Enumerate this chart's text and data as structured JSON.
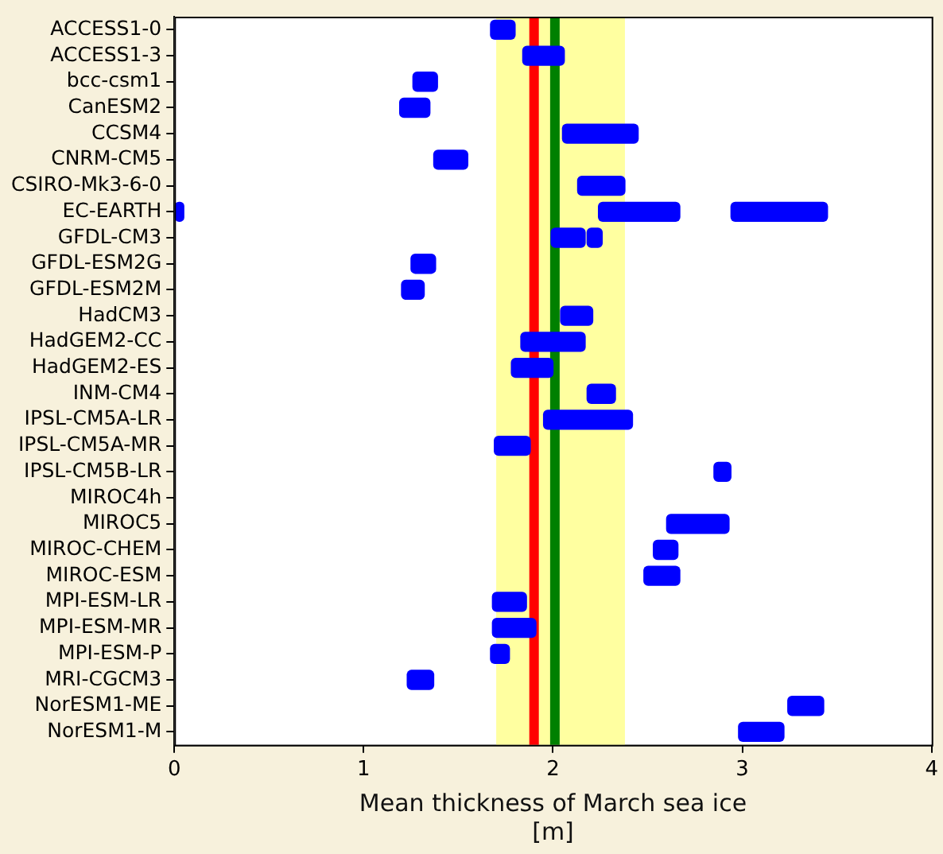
{
  "chart_data": {
    "type": "bar",
    "orientation": "horizontal",
    "xlabel": "Mean thickness of March sea ice\n[m]",
    "categories": [
      "ACCESS1-0",
      "ACCESS1-3",
      "bcc-csm1",
      "CanESM2",
      "CCSM4",
      "CNRM-CM5",
      "CSIRO-Mk3-6-0",
      "EC-EARTH",
      "GFDL-CM3",
      "GFDL-ESM2G",
      "GFDL-ESM2M",
      "HadCM3",
      "HadGEM2-CC",
      "HadGEM2-ES",
      "INM-CM4",
      "IPSL-CM5A-LR",
      "IPSL-CM5A-MR",
      "IPSL-CM5B-LR",
      "MIROC4h",
      "MIROC5",
      "MIROC-CHEM",
      "MIROC-ESM",
      "MPI-ESM-LR",
      "MPI-ESM-MR",
      "MPI-ESM-P",
      "MRI-CGCM3",
      "NorESM1-ME",
      "NorESM1-M"
    ],
    "series": [
      {
        "color": "#0000ff",
        "base": [
          1.67,
          1.84,
          1.26,
          1.19,
          2.05,
          1.37,
          2.13,
          2.24,
          1.99,
          1.25,
          1.2,
          2.04,
          1.83,
          1.78,
          2.18,
          1.95,
          1.69,
          2.85,
          null,
          2.6,
          2.53,
          2.48,
          1.68,
          1.68,
          1.67,
          1.23,
          3.24,
          2.98
        ],
        "values": [
          0.13,
          0.22,
          0.13,
          0.16,
          0.4,
          0.18,
          0.25,
          0.43,
          0.18,
          0.13,
          0.12,
          0.17,
          0.34,
          0.22,
          0.15,
          0.47,
          0.19,
          0.09,
          null,
          0.33,
          0.13,
          0.19,
          0.18,
          0.23,
          0.1,
          0.14,
          0.19,
          0.24
        ]
      },
      {
        "color": "#0000ff",
        "base": [
          null,
          null,
          null,
          null,
          null,
          null,
          null,
          2.94,
          2.18,
          null,
          null,
          null,
          null,
          null,
          null,
          null,
          null,
          null,
          null,
          null,
          null,
          null,
          null,
          null,
          null,
          null,
          null,
          null
        ],
        "values": [
          null,
          null,
          null,
          null,
          null,
          null,
          null,
          0.51,
          0.08,
          null,
          null,
          null,
          null,
          null,
          null,
          null,
          null,
          null,
          null,
          null,
          null,
          null,
          null,
          null,
          null,
          null,
          null,
          null
        ]
      },
      {
        "color": "#0000ff",
        "base": [
          null,
          null,
          null,
          null,
          null,
          null,
          null,
          0,
          null,
          null,
          null,
          null,
          null,
          null,
          null,
          null,
          null,
          null,
          null,
          null,
          null,
          null,
          null,
          null,
          null,
          null,
          null,
          null
        ],
        "values": [
          null,
          null,
          null,
          null,
          null,
          null,
          null,
          0.05,
          null,
          null,
          null,
          null,
          null,
          null,
          null,
          null,
          null,
          null,
          null,
          null,
          null,
          null,
          null,
          null,
          null,
          null,
          null,
          null
        ]
      }
    ],
    "xlim": [
      0,
      4
    ],
    "xticks": [
      0,
      1,
      2,
      3,
      4
    ],
    "grid": false,
    "legend": false,
    "ref_lines": [
      {
        "axis": "x",
        "value": 1.9,
        "color": "#ff0000"
      },
      {
        "axis": "x",
        "value": 2.01,
        "color": "#008000"
      }
    ],
    "bands": [
      {
        "axis": "x",
        "from": 1.7,
        "to": 2.38,
        "color": "#ffff80"
      }
    ]
  }
}
